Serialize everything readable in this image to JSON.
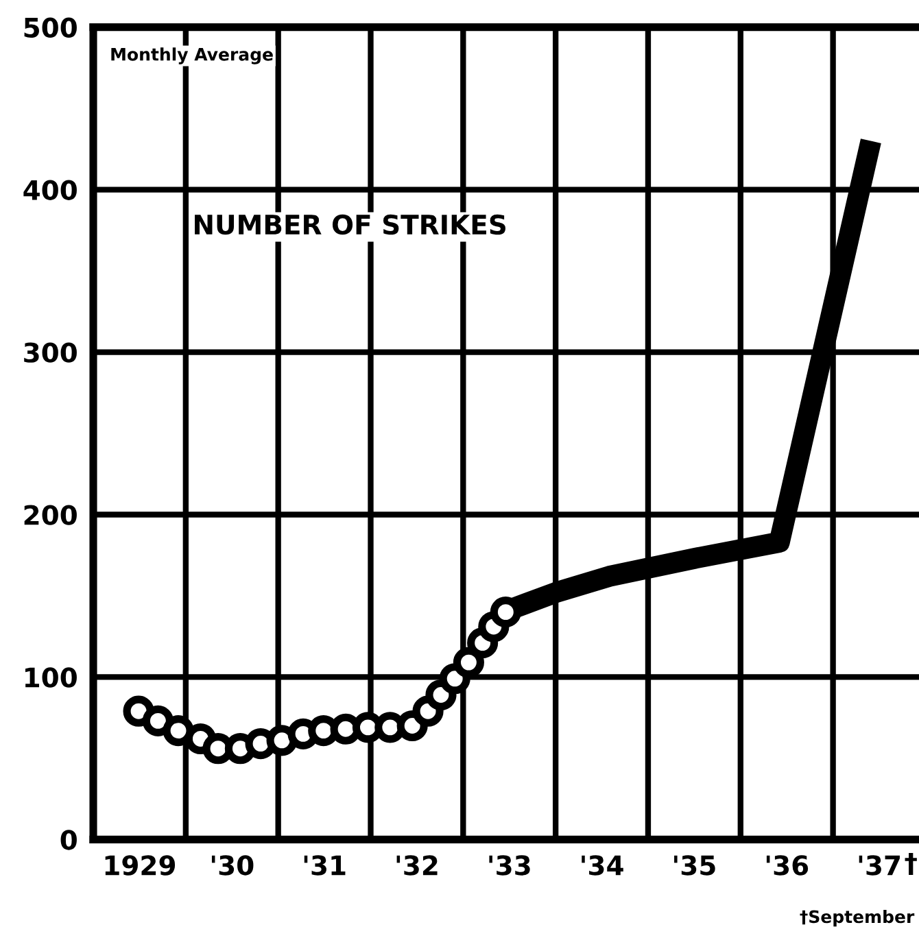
{
  "chart_data": {
    "type": "line",
    "annotations": [
      "Monthly Average",
      "NUMBER OF STRIKES",
      "†September",
      "†"
    ],
    "series": [
      {
        "type": "scatter",
        "color": "#000000",
        "marker": "circle",
        "x": [
          1928.99,
          1929.2,
          1929.42,
          1929.66,
          1929.85,
          1930.09,
          1930.31,
          1930.54,
          1930.77,
          1930.99,
          1931.23,
          1931.47,
          1931.71,
          1931.95,
          1932.12,
          1932.26,
          1932.41,
          1932.56,
          1932.71,
          1932.83,
          1932.96
        ],
        "values": [
          79,
          73,
          67,
          62,
          56,
          56,
          59,
          61,
          65,
          67,
          68,
          69,
          69,
          70,
          79,
          89,
          99,
          109,
          121,
          131,
          140
        ]
      },
      {
        "color": "#000000",
        "marker": "none",
        "x": [
          1932.98,
          1933.5,
          1934.08,
          1935.0,
          1935.92,
          1936.91
        ],
        "values": [
          141,
          152,
          162,
          173,
          183,
          430
        ]
      }
    ],
    "xlim": [
      1928.5,
      1937.43
    ],
    "xticks": [
      1929,
      {
        "value": 1929.5,
        "label": null
      },
      {
        "value": 1930,
        "label": "'30"
      },
      {
        "value": 1930.5,
        "label": null
      },
      {
        "value": 1931,
        "label": "'31"
      },
      {
        "value": 1931.5,
        "label": null
      },
      {
        "value": 1932,
        "label": "'32"
      },
      {
        "value": 1932.5,
        "label": null
      },
      {
        "value": 1933,
        "label": "'33"
      },
      {
        "value": 1933.5,
        "label": null
      },
      {
        "value": 1934,
        "label": "'34"
      },
      {
        "value": 1934.5,
        "label": null
      },
      {
        "value": 1935,
        "label": "'35"
      },
      {
        "value": 1935.5,
        "label": null
      },
      {
        "value": 1936,
        "label": "'36"
      },
      {
        "value": 1936.5,
        "label": null
      },
      {
        "value": 1937,
        "label": "'37"
      }
    ],
    "ylim": [
      0,
      500
    ],
    "yticks": [
      0,
      100,
      200,
      300,
      400,
      500
    ],
    "grid": true
  }
}
